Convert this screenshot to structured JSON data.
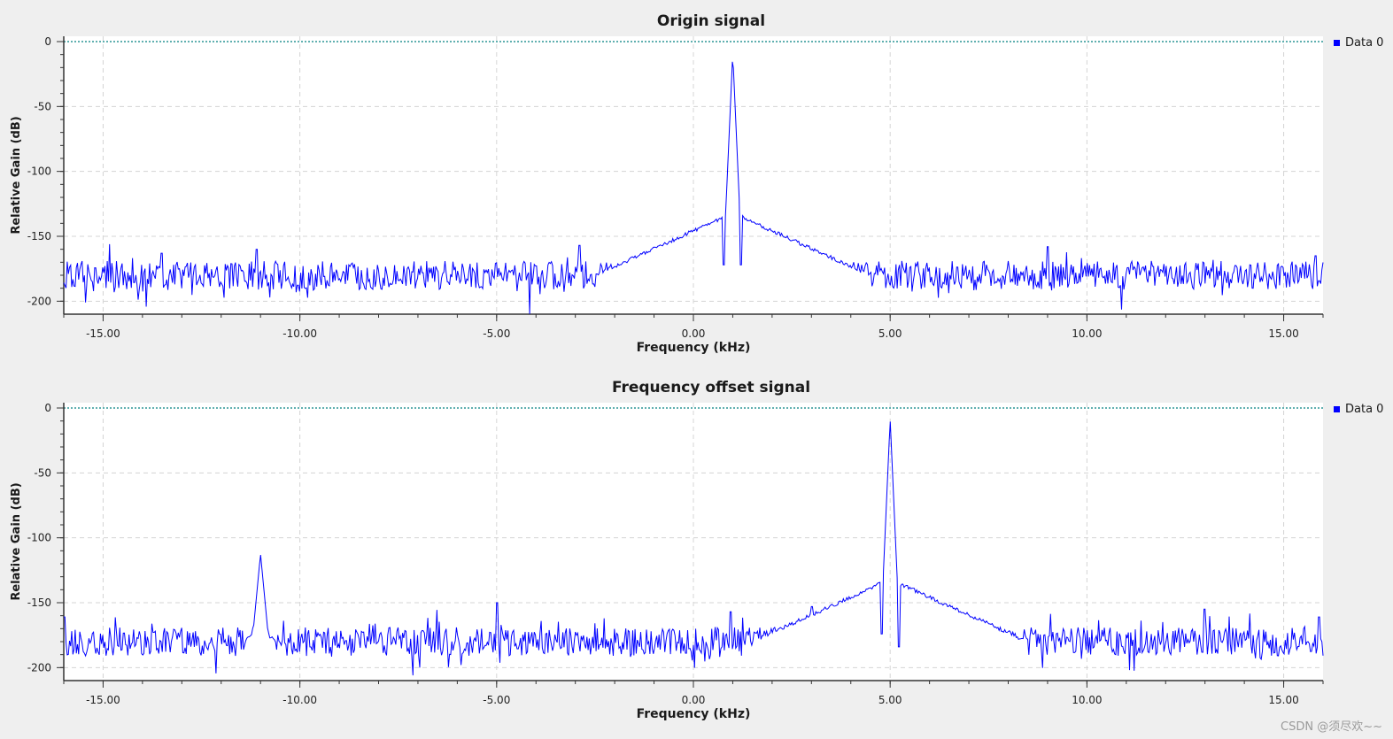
{
  "watermark": "CSDN @须尽欢~~",
  "colors": {
    "trace": "#0000ff",
    "zero_line": "#008080",
    "plot_bg": "#ffffff",
    "grid": "#d4d4d4"
  },
  "chart_data": [
    {
      "type": "line",
      "title": "Origin signal",
      "xlabel": "Frequency (kHz)",
      "ylabel": "Relative Gain (dB)",
      "xlim": [
        -16,
        16
      ],
      "ylim": [
        -210,
        0
      ],
      "xticks": [
        "-15.00",
        "-10.00",
        "-5.00",
        "0.00",
        "5.00",
        "10.00",
        "15.00"
      ],
      "xtick_values": [
        -15,
        -10,
        -5,
        0,
        5,
        10,
        15
      ],
      "yticks": [
        "0",
        "-50",
        "-100",
        "-150",
        "-200"
      ],
      "ytick_values": [
        0,
        -50,
        -100,
        -150,
        -200
      ],
      "grid": true,
      "legend": {
        "entries": [
          "Data 0"
        ],
        "placement": "top-right-outside"
      },
      "reference_line_y": 0,
      "series": [
        {
          "name": "Data 0",
          "noise_floor_db": -180,
          "peaks": [
            {
              "x": 1.0,
              "y": -8,
              "skirt_db": -132,
              "skirt_halfwidth_khz": 3.5
            }
          ],
          "nulls": [
            {
              "x": 0.78,
              "y": -172
            },
            {
              "x": 1.22,
              "y": -172
            }
          ],
          "spurs": [
            {
              "x": -2.9,
              "y": -157
            },
            {
              "x": -11.1,
              "y": -160
            },
            {
              "x": 9.0,
              "y": -158
            },
            {
              "x": -13.5,
              "y": -163
            },
            {
              "x": 15.8,
              "y": -165
            }
          ]
        }
      ]
    },
    {
      "type": "line",
      "title": "Frequency offset signal",
      "xlabel": "Frequency (kHz)",
      "ylabel": "Relative Gain (dB)",
      "xlim": [
        -16,
        16
      ],
      "ylim": [
        -210,
        0
      ],
      "xticks": [
        "-15.00",
        "-10.00",
        "-5.00",
        "0.00",
        "5.00",
        "10.00",
        "15.00"
      ],
      "xtick_values": [
        -15,
        -10,
        -5,
        0,
        5,
        10,
        15
      ],
      "yticks": [
        "0",
        "-50",
        "-100",
        "-150",
        "-200"
      ],
      "ytick_values": [
        0,
        -50,
        -100,
        -150,
        -200
      ],
      "grid": true,
      "legend": {
        "entries": [
          "Data 0"
        ],
        "placement": "top-right-outside"
      },
      "reference_line_y": 0,
      "series": [
        {
          "name": "Data 0",
          "noise_floor_db": -180,
          "peaks": [
            {
              "x": 5.0,
              "y": -8,
              "skirt_db": -132,
              "skirt_halfwidth_khz": 3.5
            },
            {
              "x": -11.0,
              "y": -112,
              "skirt_db": -170,
              "skirt_halfwidth_khz": 0.4
            }
          ],
          "nulls": [
            {
              "x": 4.78,
              "y": -174
            },
            {
              "x": 5.22,
              "y": -184
            }
          ],
          "spurs": [
            {
              "x": -5.0,
              "y": -150
            },
            {
              "x": 3.0,
              "y": -153
            },
            {
              "x": 13.0,
              "y": -155
            },
            {
              "x": 0.95,
              "y": -157
            },
            {
              "x": 15.9,
              "y": -161
            },
            {
              "x": -16.0,
              "y": -161
            }
          ]
        }
      ]
    }
  ]
}
